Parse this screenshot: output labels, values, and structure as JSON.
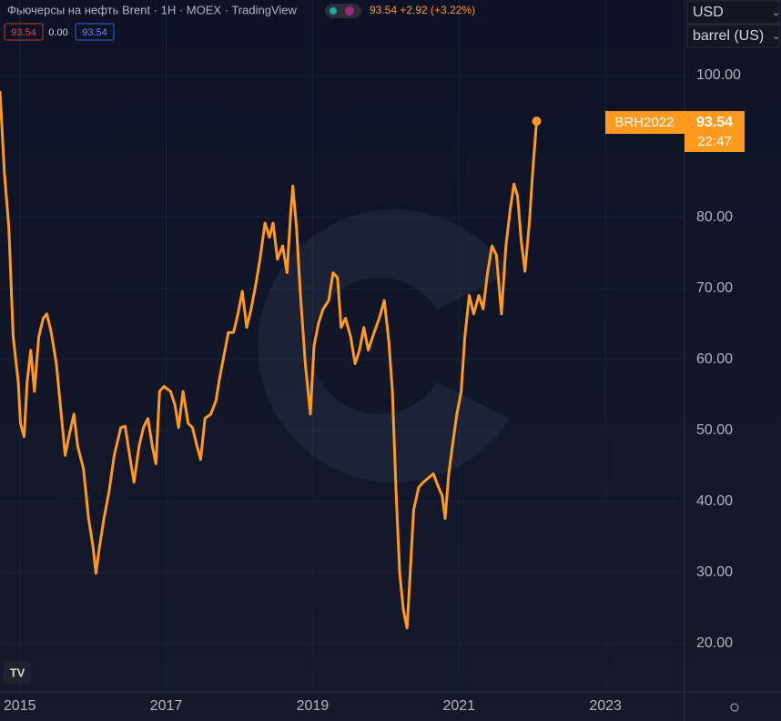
{
  "header": {
    "title": "Фьючерсы на нефть Brent · 1H · MOEX · TradingView",
    "quote": "93.54 +2.92 (+3.22%)",
    "ohlc_boxes": [
      "93.54",
      "0.00",
      "93.54"
    ]
  },
  "controls": {
    "currency": "USD",
    "unit": "barrel (US)"
  },
  "price_label": {
    "symbol": "BRH2022",
    "price": "93.54",
    "time": "22:47"
  },
  "chart_data": {
    "type": "line",
    "color": "#ff9a1f",
    "grid": true,
    "xlim": [
      2014.73,
      2024.08
    ],
    "ylim": [
      13.2,
      110.6
    ],
    "xticks": [
      2015,
      2017,
      2019,
      2021,
      2023
    ],
    "yticks": [
      {
        "value": 20,
        "label": "20.00"
      },
      {
        "value": 30,
        "label": "30.00"
      },
      {
        "value": 40,
        "label": "40.00"
      },
      {
        "value": 50,
        "label": "50.00"
      },
      {
        "value": 60,
        "label": "60.00"
      },
      {
        "value": 70,
        "label": "70.00"
      },
      {
        "value": 80,
        "label": "80.00"
      },
      {
        "value": 100,
        "label": "100.00"
      }
    ],
    "x": [
      2014.73,
      2014.79,
      2014.85,
      2014.91,
      2014.98,
      2015.01,
      2015.06,
      2015.1,
      2015.15,
      2015.2,
      2015.26,
      2015.32,
      2015.37,
      2015.43,
      2015.5,
      2015.56,
      2015.62,
      2015.67,
      2015.74,
      2015.79,
      2015.87,
      2015.94,
      2016.0,
      2016.04,
      2016.09,
      2016.15,
      2016.22,
      2016.29,
      2016.38,
      2016.44,
      2016.5,
      2016.56,
      2016.63,
      2016.69,
      2016.75,
      2016.81,
      2016.86,
      2016.91,
      2016.97,
      2017.06,
      2017.12,
      2017.17,
      2017.23,
      2017.3,
      2017.36,
      2017.42,
      2017.47,
      2017.53,
      2017.61,
      2017.68,
      2017.73,
      2017.79,
      2017.85,
      2017.92,
      2017.98,
      2018.04,
      2018.1,
      2018.16,
      2018.23,
      2018.29,
      2018.35,
      2018.41,
      2018.46,
      2018.52,
      2018.59,
      2018.65,
      2018.7,
      2018.73,
      2018.78,
      2018.83,
      2018.9,
      2018.97,
      2019.02,
      2019.08,
      2019.14,
      2019.22,
      2019.28,
      2019.34,
      2019.39,
      2019.45,
      2019.52,
      2019.58,
      2019.64,
      2019.7,
      2019.76,
      2019.84,
      2019.91,
      2019.98,
      2020.04,
      2020.09,
      2020.14,
      2020.19,
      2020.24,
      2020.29,
      2020.34,
      2020.38,
      2020.45,
      2020.51,
      2020.58,
      2020.65,
      2020.72,
      2020.77,
      2020.81,
      2020.86,
      2020.91,
      2020.97,
      2021.03,
      2021.08,
      2021.14,
      2021.2,
      2021.27,
      2021.33,
      2021.39,
      2021.45,
      2021.51,
      2021.58,
      2021.64,
      2021.7,
      2021.75,
      2021.8,
      2021.85,
      2021.9,
      2021.96,
      2022.01,
      2022.06
    ],
    "values": [
      97.8,
      86.3,
      78.6,
      63.2,
      56.8,
      51,
      49.1,
      56.8,
      61.3,
      55.5,
      63.2,
      65.8,
      66.4,
      63.8,
      59.4,
      52.9,
      46.5,
      49.1,
      52.3,
      47.8,
      44.6,
      37.6,
      33.7,
      29.9,
      33.7,
      37.6,
      41.4,
      46.5,
      50.4,
      50.6,
      46.5,
      42.7,
      47.8,
      50.4,
      51.7,
      47.8,
      45.3,
      55.5,
      56.2,
      55.5,
      53.6,
      50.4,
      55.5,
      51,
      50.4,
      47.8,
      45.9,
      51.7,
      52.3,
      54.2,
      57.4,
      60.6,
      63.8,
      63.8,
      66.4,
      69.6,
      64.5,
      67.1,
      70.9,
      74.7,
      79.2,
      77.2,
      79.2,
      74.1,
      76,
      72.2,
      80.5,
      84.4,
      78.6,
      69.6,
      59.4,
      52.3,
      61.9,
      65.1,
      67,
      68.3,
      72.2,
      71.5,
      64.5,
      65.8,
      63.2,
      59.4,
      61.3,
      64.5,
      61.3,
      63.8,
      65.8,
      68.3,
      62.6,
      55.5,
      41.4,
      29.9,
      24.7,
      22.2,
      31.2,
      38.8,
      42,
      42.7,
      43.3,
      43.9,
      42,
      40.8,
      37.6,
      43.9,
      47.8,
      52.3,
      55.5,
      63.2,
      69,
      66.4,
      69,
      67.1,
      72.2,
      76,
      74.7,
      66.4,
      76,
      81.2,
      84.7,
      83,
      76.7,
      72.4,
      79.2,
      86.9,
      93.54
    ]
  }
}
